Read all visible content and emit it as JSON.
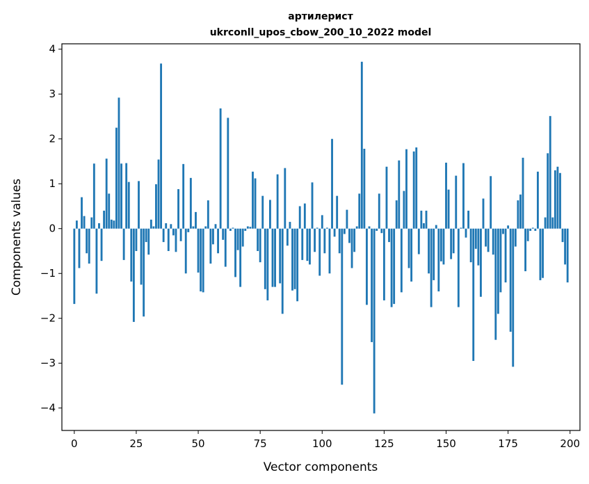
{
  "chart_data": {
    "type": "bar",
    "title": [
      "артилерист",
      "ukrconll_upos_cbow_200_10_2022 model"
    ],
    "xlabel": "Vector components",
    "ylabel": "Components values",
    "xlim": [
      -5,
      204
    ],
    "ylim": [
      -4.5,
      4.12
    ],
    "xticks": [
      0,
      25,
      50,
      75,
      100,
      125,
      150,
      175,
      200
    ],
    "yticks": [
      -4,
      -3,
      -2,
      -1,
      0,
      1,
      2,
      3,
      4
    ],
    "ytick_labels": [
      "−4",
      "−3",
      "−2",
      "−1",
      "0",
      "1",
      "2",
      "3",
      "4"
    ],
    "bar_color": "#1f77b4",
    "grid": false,
    "x": [
      0,
      1,
      2,
      3,
      4,
      5,
      6,
      7,
      8,
      9,
      10,
      11,
      12,
      13,
      14,
      15,
      16,
      17,
      18,
      19,
      20,
      21,
      22,
      23,
      24,
      25,
      26,
      27,
      28,
      29,
      30,
      31,
      32,
      33,
      34,
      35,
      36,
      37,
      38,
      39,
      40,
      41,
      42,
      43,
      44,
      45,
      46,
      47,
      48,
      49,
      50,
      51,
      52,
      53,
      54,
      55,
      56,
      57,
      58,
      59,
      60,
      61,
      62,
      63,
      64,
      65,
      66,
      67,
      68,
      69,
      70,
      71,
      72,
      73,
      74,
      75,
      76,
      77,
      78,
      79,
      80,
      81,
      82,
      83,
      84,
      85,
      86,
      87,
      88,
      89,
      90,
      91,
      92,
      93,
      94,
      95,
      96,
      97,
      98,
      99,
      100,
      101,
      102,
      103,
      104,
      105,
      106,
      107,
      108,
      109,
      110,
      111,
      112,
      113,
      114,
      115,
      116,
      117,
      118,
      119,
      120,
      121,
      122,
      123,
      124,
      125,
      126,
      127,
      128,
      129,
      130,
      131,
      132,
      133,
      134,
      135,
      136,
      137,
      138,
      139,
      140,
      141,
      142,
      143,
      144,
      145,
      146,
      147,
      148,
      149,
      150,
      151,
      152,
      153,
      154,
      155,
      156,
      157,
      158,
      159,
      160,
      161,
      162,
      163,
      164,
      165,
      166,
      167,
      168,
      169,
      170,
      171,
      172,
      173,
      174,
      175,
      176,
      177,
      178,
      179,
      180,
      181,
      182,
      183,
      184,
      185,
      186,
      187,
      188,
      189,
      190,
      191,
      192,
      193,
      194,
      195,
      196,
      197,
      198,
      199
    ],
    "values": [
      -1.68,
      0.18,
      -0.88,
      0.7,
      0.28,
      -0.55,
      -0.78,
      0.25,
      1.45,
      -1.45,
      0.12,
      -0.72,
      0.4,
      1.56,
      0.78,
      0.2,
      0.18,
      2.25,
      2.92,
      1.45,
      -0.7,
      1.46,
      1.04,
      -1.18,
      -2.08,
      -0.5,
      1.06,
      -1.25,
      -1.96,
      -0.3,
      -0.58,
      0.2,
      0.05,
      0.99,
      1.54,
      3.68,
      -0.3,
      0.12,
      -0.5,
      0.1,
      -0.15,
      -0.52,
      0.88,
      -0.28,
      1.44,
      -1.0,
      -0.08,
      1.13,
      0.05,
      0.37,
      -0.98,
      -1.4,
      -1.42,
      0.05,
      0.63,
      -0.78,
      -0.35,
      0.1,
      -0.55,
      2.68,
      -0.25,
      -0.85,
      2.47,
      -0.05,
      0.02,
      -1.08,
      -0.48,
      -1.3,
      -0.4,
      -0.05,
      0.05,
      0.04,
      1.27,
      1.12,
      -0.5,
      -0.75,
      0.73,
      -1.35,
      -1.6,
      0.64,
      -1.3,
      -1.3,
      1.21,
      -1.22,
      -1.9,
      1.35,
      -0.38,
      0.15,
      -1.38,
      -1.35,
      -1.62,
      0.5,
      -0.7,
      0.56,
      -0.72,
      -0.8,
      1.03,
      -0.52,
      0.02,
      -1.05,
      0.3,
      -0.55,
      0.02,
      -1.0,
      2.0,
      -0.18,
      0.73,
      -0.55,
      -3.48,
      -0.12,
      0.42,
      -0.32,
      -0.88,
      -0.52,
      0.05,
      0.78,
      3.72,
      1.78,
      -1.7,
      0.05,
      -2.53,
      -4.12,
      -0.05,
      0.78,
      -0.1,
      -1.6,
      1.38,
      -0.3,
      -1.75,
      -1.68,
      0.63,
      1.52,
      -1.42,
      0.84,
      1.77,
      -0.88,
      -1.18,
      1.72,
      1.81,
      -0.57,
      0.4,
      0.12,
      0.4,
      -1.0,
      -1.75,
      -1.15,
      0.08,
      -1.4,
      -0.73,
      -0.8,
      1.47,
      0.87,
      -0.68,
      -0.55,
      1.18,
      -1.75,
      0.02,
      1.46,
      -0.2,
      0.4,
      -0.75,
      -2.95,
      -0.45,
      -0.82,
      -1.52,
      0.67,
      -0.4,
      -0.52,
      1.17,
      -0.58,
      -2.48,
      -1.9,
      -1.42,
      -0.12,
      -1.2,
      0.07,
      -2.3,
      -3.08,
      -0.4,
      0.63,
      0.76,
      1.58,
      -0.95,
      -0.28,
      -0.05,
      0.02,
      -0.05,
      1.27,
      -1.15,
      -1.1,
      0.25,
      1.68,
      2.51,
      0.25,
      1.3,
      1.38,
      1.24,
      -0.3,
      -0.8,
      -1.2
    ]
  }
}
